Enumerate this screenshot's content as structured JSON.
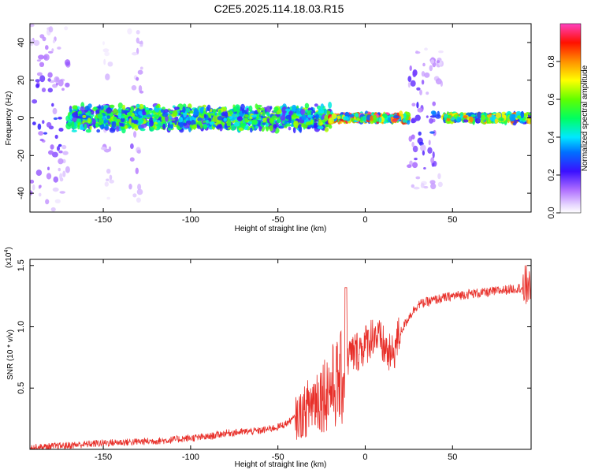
{
  "title": "C2E5.2025.114.18.03.R15",
  "chart_data": [
    {
      "type": "heatmap",
      "title": "C2E5.2025.114.18.03.R15",
      "xlabel": "Height of straight line (km)",
      "ylabel": "Frequency (Hz)",
      "xlim": [
        -192,
        95
      ],
      "ylim": [
        -50,
        50
      ],
      "x_ticks": [
        -150,
        -100,
        -50,
        0,
        50
      ],
      "x_tick_labels": [
        "-150",
        "-100",
        "-50",
        "0",
        "50"
      ],
      "y_ticks": [
        -40,
        -20,
        0,
        20,
        40
      ],
      "y_tick_labels": [
        "-40",
        "-20",
        "0",
        "20",
        "40"
      ],
      "colorbar": {
        "label": "Normalized spectral amplitude",
        "range": [
          0,
          1
        ],
        "ticks": [
          0.0,
          0.2,
          0.4,
          0.6,
          0.8
        ],
        "tick_labels": [
          "0.0",
          "0.2",
          "0.4",
          "0.6",
          "0.8"
        ],
        "colors": [
          "#ffffff",
          "#e0c8ff",
          "#8a3cf0",
          "#2020ff",
          "#00ffff",
          "#00ff00",
          "#ffff00",
          "#ff8000",
          "#ff0000",
          "#ff40c0"
        ]
      },
      "bands": [
        {
          "x": [
            -192,
            -170
          ],
          "freq_spread": 50,
          "amplitude": 0.25
        },
        {
          "x": [
            -150,
            -145
          ],
          "freq_spread": 45,
          "amplitude": 0.12
        },
        {
          "x": [
            -135,
            -128
          ],
          "freq_spread": 50,
          "amplitude": 0.18
        },
        {
          "x": [
            -170,
            -20
          ],
          "freq_spread": 6,
          "amplitude": 0.55
        },
        {
          "x": [
            -20,
            25
          ],
          "freq_spread": 2,
          "amplitude": 0.85
        },
        {
          "x": [
            25,
            45
          ],
          "freq_spread": 38,
          "amplitude": 0.3
        },
        {
          "x": [
            45,
            95
          ],
          "freq_spread": 2,
          "amplitude": 0.7
        }
      ]
    },
    {
      "type": "line",
      "xlabel": "Height of straight line (km)",
      "ylabel": "SNR (10 * v/v)",
      "y_scale_label": "(x10",
      "y_scale_exp": "4",
      "y_scale_close": ")",
      "xlim": [
        -192,
        95
      ],
      "ylim": [
        0,
        1.55
      ],
      "x_ticks": [
        -150,
        -100,
        -50,
        0,
        50
      ],
      "x_tick_labels": [
        "-150",
        "-100",
        "-50",
        "0",
        "50"
      ],
      "y_ticks": [
        0.5,
        1.0,
        1.5
      ],
      "y_tick_labels": [
        "0.5",
        "1.0",
        "1.5"
      ],
      "line_color": "#e8302a",
      "series": [
        {
          "x": [
            -192,
            -170,
            -150,
            -130,
            -115,
            -100,
            -90,
            -80,
            -70,
            -60,
            -50,
            -45,
            -40,
            -35,
            -30,
            -25,
            -20,
            -15,
            -12,
            -10,
            -5,
            0,
            5,
            10,
            15,
            20,
            25,
            30,
            40,
            50,
            60,
            70,
            80,
            90,
            95
          ],
          "y": [
            0.0,
            0.02,
            0.04,
            0.05,
            0.06,
            0.08,
            0.09,
            0.12,
            0.13,
            0.14,
            0.17,
            0.2,
            0.25,
            0.3,
            0.4,
            0.45,
            0.5,
            0.55,
            0.6,
            0.75,
            0.8,
            0.85,
            0.95,
            0.85,
            0.75,
            0.95,
            1.08,
            1.18,
            1.22,
            1.25,
            1.27,
            1.28,
            1.3,
            1.32,
            1.35
          ]
        }
      ]
    }
  ]
}
